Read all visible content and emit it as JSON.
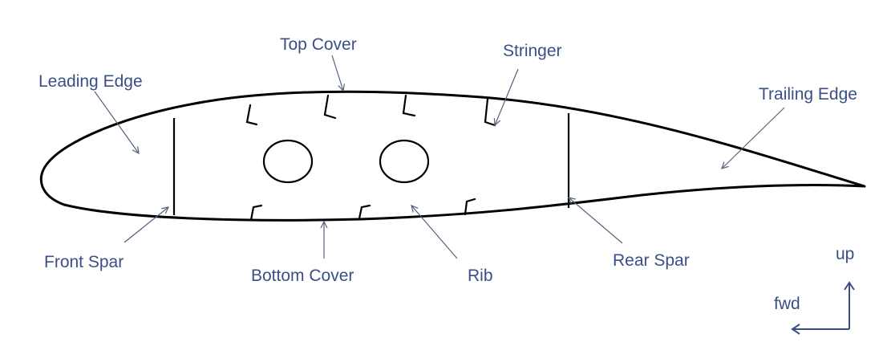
{
  "labels": {
    "top_cover": "Top Cover",
    "stringer": "Stringer",
    "leading_edge": "Leading Edge",
    "trailing_edge": "Trailing Edge",
    "front_spar": "Front Spar",
    "bottom_cover": "Bottom Cover",
    "rib": "Rib",
    "rear_spar": "Rear Spar"
  },
  "axes": {
    "up": "up",
    "fwd": "fwd"
  },
  "colors": {
    "label_text": "#3a4f86",
    "outline": "#000000",
    "leader": "#55607f"
  }
}
